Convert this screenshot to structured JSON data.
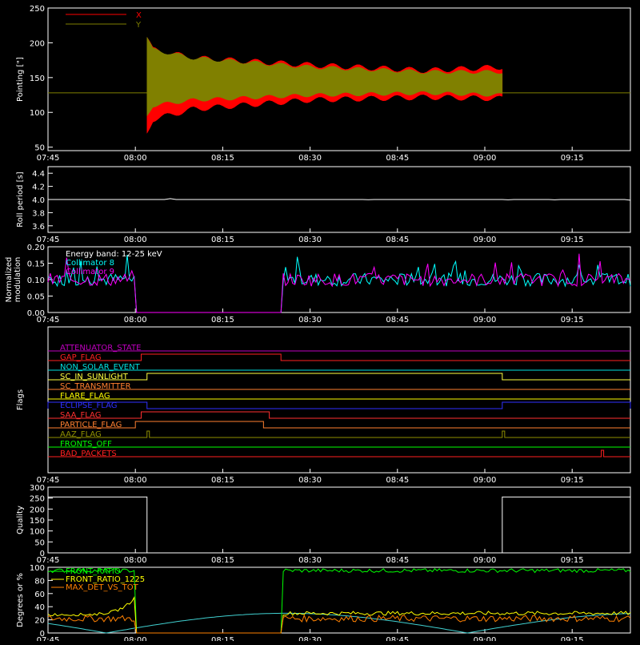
{
  "chart_data": [
    {
      "type": "area",
      "ylabel": "Pointing [\"]",
      "ylim": [
        45,
        250
      ],
      "yticks": [
        "50",
        "100",
        "150",
        "200",
        "250"
      ],
      "x_ticks": [
        "07:45",
        "08:00",
        "08:15",
        "08:30",
        "08:45",
        "09:00",
        "09:15"
      ],
      "legend": "top-left",
      "series": [
        {
          "name": "X",
          "color": "#ff0000",
          "values_at": [
            "08:02",
            "08:03",
            "08:10",
            "08:30",
            "08:50",
            "09:03"
          ],
          "min": [
            70,
            90,
            105,
            118,
            122,
            120
          ],
          "max": [
            208,
            190,
            178,
            168,
            160,
            165
          ]
        },
        {
          "name": "Y",
          "color": "#808000",
          "values_at": [
            "08:02",
            "08:03",
            "08:10",
            "08:30",
            "08:50",
            "09:03"
          ],
          "min": [
            95,
            110,
            118,
            125,
            128,
            125
          ],
          "max": [
            208,
            190,
            178,
            165,
            158,
            158
          ]
        }
      ],
      "baseline": 128
    },
    {
      "type": "line",
      "ylabel": "Roll period [s]",
      "ylim": [
        3.5,
        4.5
      ],
      "yticks": [
        "3.6",
        "3.8",
        "4.0",
        "4.2",
        "4.4"
      ],
      "x_ticks": [
        "07:45",
        "08:00",
        "08:15",
        "08:30",
        "08:45",
        "09:00",
        "09:15"
      ],
      "series": [
        {
          "color": "#ffffff",
          "value": 4.0
        }
      ]
    },
    {
      "type": "line",
      "ylabel": "Normalized modulation",
      "ylim": [
        0,
        0.2
      ],
      "yticks": [
        "0.00",
        "0.05",
        "0.10",
        "0.15",
        "0.20"
      ],
      "x_ticks": [
        "07:45",
        "08:00",
        "08:15",
        "08:30",
        "08:45",
        "09:00",
        "09:15"
      ],
      "annotations": [
        "Energy band: 12-25 keV",
        "Collimator 8",
        "Collimator 9"
      ],
      "annotation_colors": [
        "#ffffff",
        "#00ffff",
        "#ff00ff"
      ],
      "gap": [
        "08:00",
        "08:25"
      ],
      "mean": 0.1,
      "series": [
        {
          "color": "#00ffff"
        },
        {
          "color": "#ff00ff"
        }
      ]
    },
    {
      "type": "line",
      "ylabel": "Flags",
      "x_ticks": [
        "07:45",
        "08:00",
        "08:15",
        "08:30",
        "08:45",
        "09:00",
        "09:15"
      ],
      "flags": [
        {
          "name": "ATTENUATOR_STATE",
          "color": "#c000c0",
          "on": []
        },
        {
          "name": "GAP_FLAG",
          "color": "#ff2020",
          "on": [
            [
              "08:01",
              "08:25"
            ]
          ]
        },
        {
          "name": "NON_SOLAR_EVENT",
          "color": "#00e0e0",
          "on": []
        },
        {
          "name": "SC_IN_SUNLIGHT",
          "color": "#ffff40",
          "on": [
            [
              "08:02",
              "09:03"
            ]
          ]
        },
        {
          "name": "SC_TRANSMITTER",
          "color": "#ff8030",
          "on": []
        },
        {
          "name": "FLARE_FLAG",
          "color": "#ffff00",
          "on": []
        },
        {
          "name": "ECLIPSE_FLAG",
          "color": "#3030ff",
          "on": [
            [
              "07:45",
              "08:02"
            ],
            [
              "09:03",
              "09:25"
            ]
          ]
        },
        {
          "name": "SAA_FLAG",
          "color": "#ff3030",
          "on": [
            [
              "08:01",
              "08:23"
            ]
          ]
        },
        {
          "name": "PARTICLE_FLAG",
          "color": "#ff8030",
          "on": [
            [
              "08:00",
              "08:22"
            ]
          ]
        },
        {
          "name": "AAZ_FLAG",
          "color": "#909000",
          "on": [
            [
              "08:02",
              "08:02"
            ],
            [
              "09:03",
              "09:03"
            ]
          ]
        },
        {
          "name": "FRONTS_OFF",
          "color": "#00ff00",
          "on": []
        },
        {
          "name": "BAD_PACKETS",
          "color": "#ff2020",
          "on": [
            [
              "09:20",
              "09:20"
            ]
          ]
        }
      ]
    },
    {
      "type": "line",
      "ylabel": "Quality",
      "ylim": [
        0,
        300
      ],
      "yticks": [
        "0",
        "50",
        "100",
        "150",
        "200",
        "250",
        "300"
      ],
      "x_ticks": [
        "07:45",
        "08:00",
        "08:15",
        "08:30",
        "08:45",
        "09:00",
        "09:15"
      ],
      "series": [
        {
          "color": "#ffffff",
          "x": [
            "07:45",
            "08:02",
            "08:02",
            "09:03",
            "09:03",
            "09:25"
          ],
          "y": [
            255,
            255,
            0,
            0,
            255,
            255
          ]
        }
      ]
    },
    {
      "type": "line",
      "ylabel": "Degrees or %",
      "ylim": [
        0,
        100
      ],
      "yticks": [
        "0",
        "20",
        "40",
        "60",
        "80",
        "100"
      ],
      "x_ticks": [
        "07:45",
        "08:00",
        "08:15",
        "08:30",
        "08:45",
        "09:00",
        "09:15"
      ],
      "legend": "top-left",
      "series": [
        {
          "name": "FRONT_RATIO",
          "color": "#00ff00",
          "level": 95
        },
        {
          "name": "FRONT_RATIO_1225",
          "color": "#ffff00",
          "level": 30
        },
        {
          "name": "MAX_DET_VS_TOT",
          "color": "#ff8000",
          "level": 22
        }
      ],
      "ramp": {
        "x": [
          "07:45",
          "08:00"
        ],
        "y": [
          28,
          55
        ]
      },
      "gap": [
        "08:00",
        "08:25"
      ],
      "cyan_curve": {
        "color": "#40d0d0",
        "peak": 30,
        "period_min": 62,
        "zero_at": "07:55"
      }
    }
  ]
}
